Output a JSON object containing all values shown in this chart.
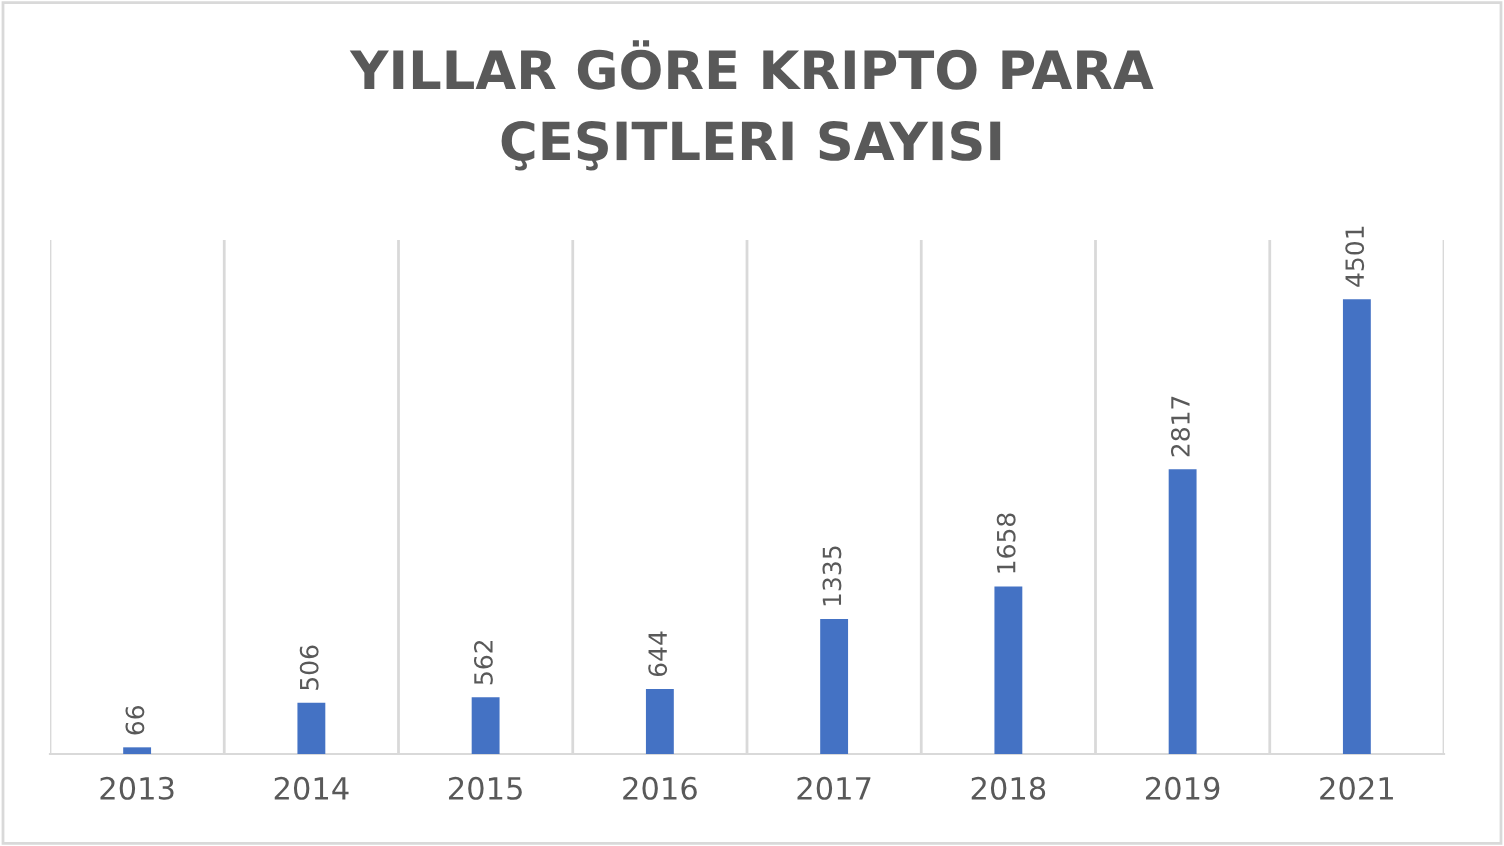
{
  "chart_data": {
    "type": "bar",
    "title": "YILLAR GÖRE KRIPTO PARA\nÇEŞITLERI SAYISI",
    "categories": [
      "2013",
      "2014",
      "2015",
      "2016",
      "2017",
      "2018",
      "2019",
      "2021"
    ],
    "values": [
      66,
      506,
      562,
      644,
      1335,
      1658,
      2817,
      4501
    ],
    "color": "#4472c4",
    "data_labels": true,
    "grid": "x"
  }
}
